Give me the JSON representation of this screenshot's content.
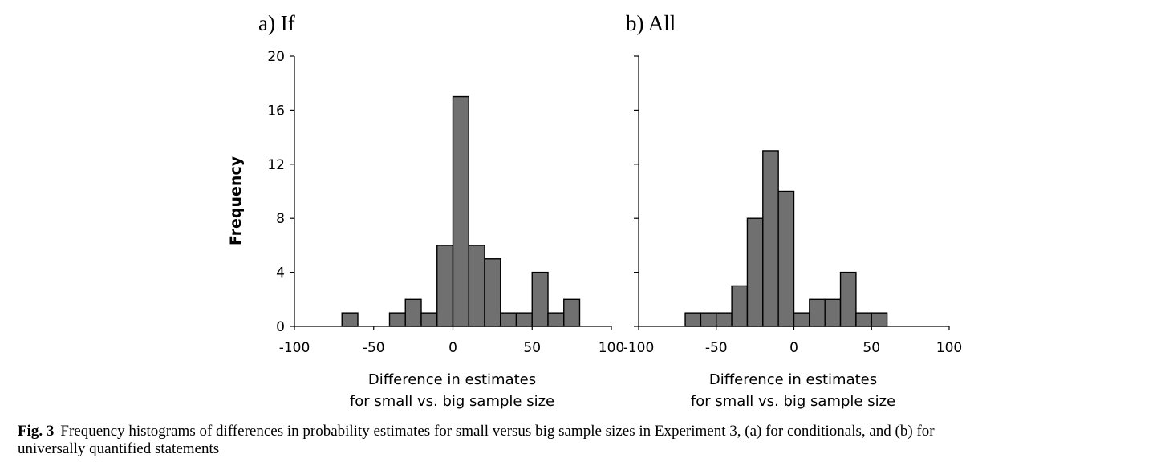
{
  "chart_data": [
    {
      "type": "bar",
      "title": "a) If",
      "xlabel_line1": "Difference in estimates",
      "xlabel_line2": "for small vs. big sample size",
      "ylabel": "Frequency",
      "xlim": [
        -100,
        100
      ],
      "ylim": [
        0,
        20
      ],
      "x_ticks": [
        "-100",
        "-50",
        "0",
        "50",
        "100"
      ],
      "y_ticks": [
        "0",
        "4",
        "8",
        "12",
        "16",
        "20"
      ],
      "bin_width": 10,
      "bins": [
        {
          "x": -70,
          "value": 1
        },
        {
          "x": -40,
          "value": 1
        },
        {
          "x": -30,
          "value": 2
        },
        {
          "x": -20,
          "value": 1
        },
        {
          "x": -10,
          "value": 6
        },
        {
          "x": 0,
          "value": 17
        },
        {
          "x": 10,
          "value": 6
        },
        {
          "x": 20,
          "value": 5
        },
        {
          "x": 30,
          "value": 1
        },
        {
          "x": 40,
          "value": 1
        },
        {
          "x": 50,
          "value": 4
        },
        {
          "x": 60,
          "value": 1
        },
        {
          "x": 70,
          "value": 2
        }
      ],
      "bar_color": "#707070"
    },
    {
      "type": "bar",
      "title": "b) All",
      "xlabel_line1": "Difference in estimates",
      "xlabel_line2": "for small vs. big sample size",
      "ylabel": "",
      "xlim": [
        -100,
        100
      ],
      "ylim": [
        0,
        20
      ],
      "x_ticks": [
        "-100",
        "-50",
        "0",
        "50",
        "100"
      ],
      "y_ticks": [
        "",
        "",
        "",
        "",
        "",
        ""
      ],
      "bin_width": 10,
      "bins": [
        {
          "x": -70,
          "value": 1
        },
        {
          "x": -60,
          "value": 1
        },
        {
          "x": -50,
          "value": 1
        },
        {
          "x": -40,
          "value": 3
        },
        {
          "x": -30,
          "value": 8
        },
        {
          "x": -20,
          "value": 13
        },
        {
          "x": -10,
          "value": 10
        },
        {
          "x": 0,
          "value": 1
        },
        {
          "x": 10,
          "value": 2
        },
        {
          "x": 20,
          "value": 2
        },
        {
          "x": 30,
          "value": 4
        },
        {
          "x": 40,
          "value": 1
        },
        {
          "x": 50,
          "value": 1
        }
      ],
      "bar_color": "#707070"
    }
  ],
  "caption": {
    "label": "Fig. 3",
    "text_line1": "Frequency histograms of differences in probability estimates for small versus big sample sizes in Experiment 3, (a) for conditionals, and (b) for",
    "text_line2": "universally quantified statements"
  }
}
